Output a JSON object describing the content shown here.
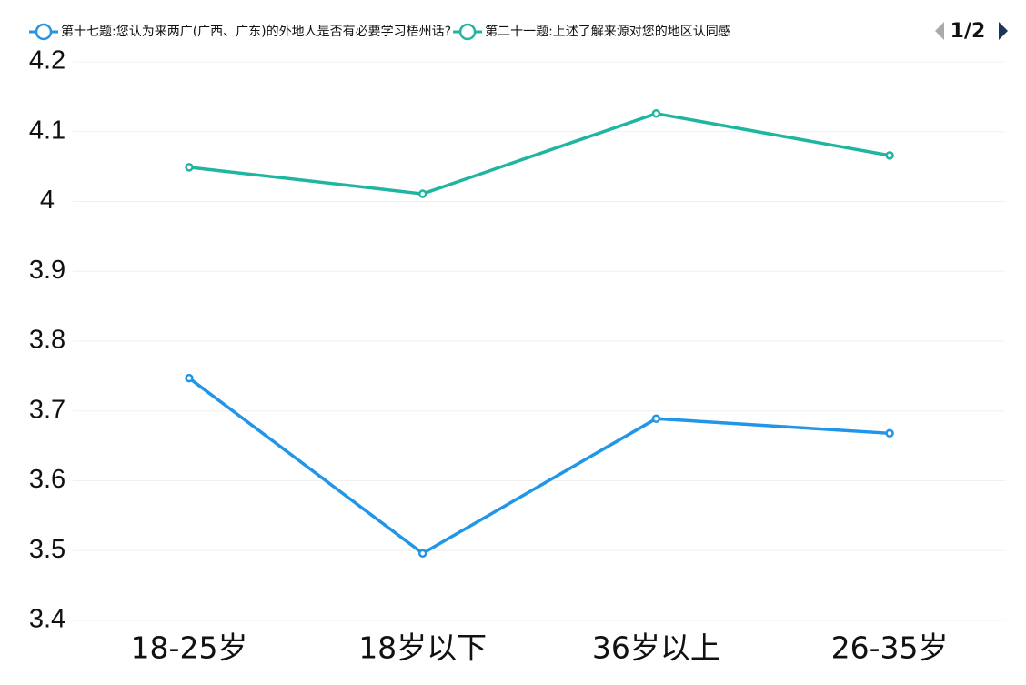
{
  "chart_data": {
    "type": "line",
    "categories": [
      "18-25岁",
      "18岁以下",
      "36岁以上",
      "26-35岁"
    ],
    "series": [
      {
        "name": "第十七题:您认为来两广(广西、广东)的外地人是否有必要学习梧州话?",
        "color": "#2196e8",
        "values": [
          3.747,
          3.496,
          3.689,
          3.668
        ]
      },
      {
        "name": "第二十一题:上述了解来源对您的地区认同感",
        "color": "#1fb5a0",
        "values": [
          4.049,
          4.011,
          4.126,
          4.066
        ]
      }
    ],
    "legend_page": "1/2",
    "ylim": [
      3.4,
      4.2
    ],
    "yticks": [
      3.4,
      3.5,
      3.6,
      3.7,
      3.8,
      3.9,
      4,
      4.1,
      4.2
    ],
    "grid": true
  }
}
